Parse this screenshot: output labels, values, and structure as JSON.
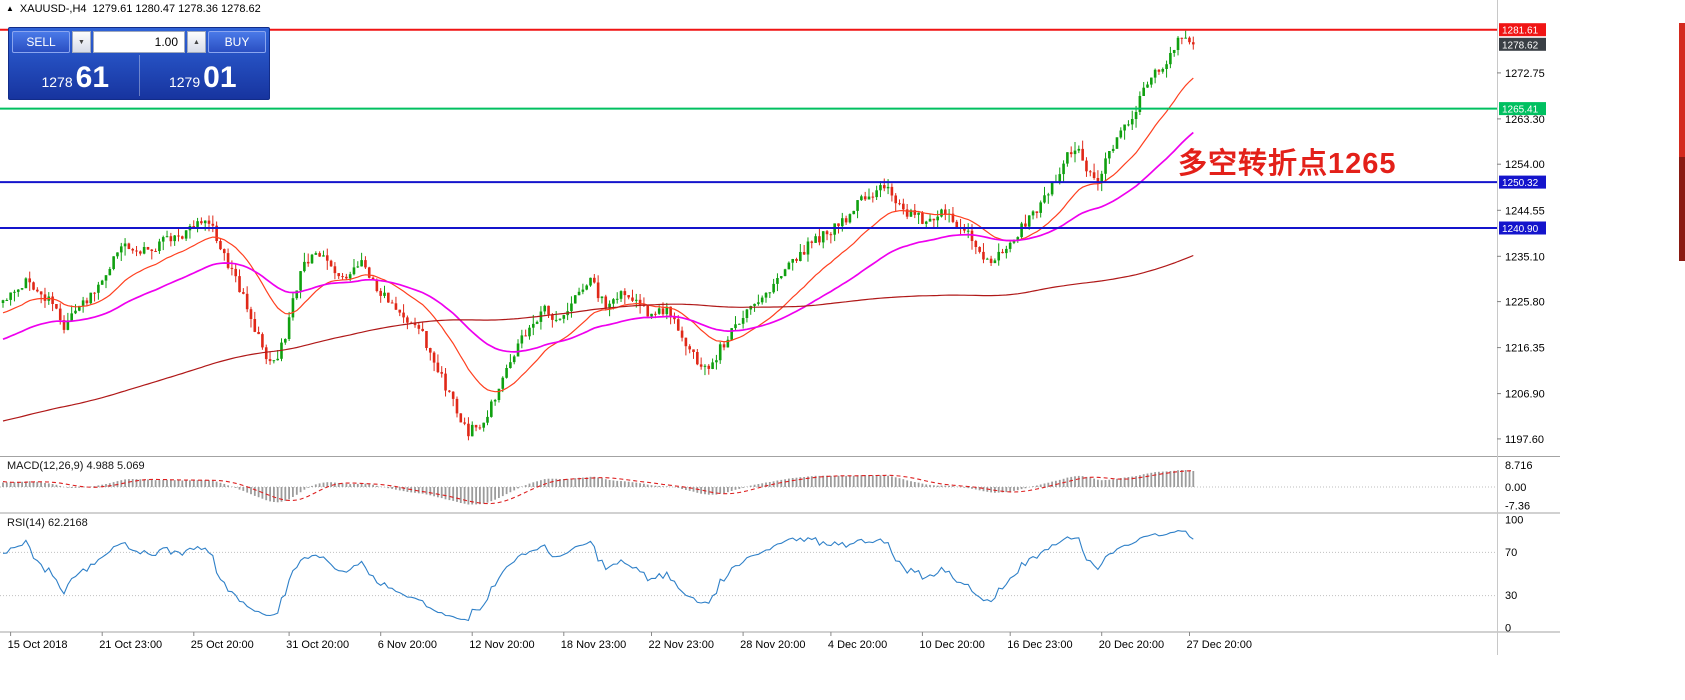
{
  "title_bar": {
    "symbol_icon": "▲",
    "symbol": "XAUUSD-,H4",
    "ohlc": "1279.61 1280.47 1278.36 1278.62"
  },
  "trade_panel": {
    "sell_label": "SELL",
    "buy_label": "BUY",
    "volume": "1.00",
    "volume_down_icon": "▼",
    "volume_up_icon": "▲",
    "sell_price_main": "1278",
    "sell_price_pips": "61",
    "buy_price_main": "1279",
    "buy_price_pips": "01"
  },
  "annotation": {
    "text": "多空转折点1265",
    "color": "#e32019"
  },
  "indicator_labels": {
    "macd": "MACD(12,26,9) 4.988 5.069",
    "rsi": "RSI(14) 62.2168"
  },
  "chart_data": {
    "type": "candlestick",
    "symbol": "XAUUSD-",
    "timeframe": "H4",
    "title_ohlc": {
      "open": "1279.61",
      "high": "1280.47",
      "low": "1278.36",
      "close": "1278.62"
    },
    "up_color": "#10a010",
    "down_color": "#e02818",
    "y_axis": {
      "min": 1194.3,
      "max": 1283.2,
      "ticks": [
        {
          "label": "1272.75",
          "price": 1272.75
        },
        {
          "label": "1263.30",
          "price": 1263.3
        },
        {
          "label": "1254.00",
          "price": 1254.0
        },
        {
          "label": "1244.55",
          "price": 1244.55
        },
        {
          "label": "1235.10",
          "price": 1235.1
        },
        {
          "label": "1225.80",
          "price": 1225.8
        },
        {
          "label": "1216.35",
          "price": 1216.35
        },
        {
          "label": "1206.90",
          "price": 1206.9
        },
        {
          "label": "1197.60",
          "price": 1197.6
        }
      ]
    },
    "current_price": {
      "label": "1278.62",
      "price": 1278.62,
      "box_color": "#3a3f45"
    },
    "hlines": [
      {
        "label": "1281.61",
        "price": 1281.61,
        "color": "#f01414"
      },
      {
        "label": "1265.41",
        "price": 1265.41,
        "color": "#00c060"
      },
      {
        "label": "1250.32",
        "price": 1250.32,
        "color": "#1414cc"
      },
      {
        "label": "1240.90",
        "price": 1240.9,
        "color": "#1414cc"
      }
    ],
    "time_axis": [
      {
        "label": "15 Oct 2018",
        "i": 2
      },
      {
        "label": "21 Oct 23:00",
        "i": 26
      },
      {
        "label": "25 Oct 20:00",
        "i": 50
      },
      {
        "label": "31 Oct 20:00",
        "i": 75
      },
      {
        "label": "6 Nov 20:00",
        "i": 99
      },
      {
        "label": "12 Nov 20:00",
        "i": 123
      },
      {
        "label": "18 Nov 23:00",
        "i": 147
      },
      {
        "label": "22 Nov 23:00",
        "i": 170
      },
      {
        "label": "28 Nov 20:00",
        "i": 194
      },
      {
        "label": "4 Dec 20:00",
        "i": 217
      },
      {
        "label": "10 Dec 20:00",
        "i": 241
      },
      {
        "label": "16 Dec 23:00",
        "i": 264
      },
      {
        "label": "20 Dec 20:00",
        "i": 288
      },
      {
        "label": "27 Dec 20:00",
        "i": 311
      }
    ],
    "candles_visible": 312,
    "warmup_path": [
      [
        -230,
        1196
      ],
      [
        -200,
        1191
      ],
      [
        -170,
        1188
      ],
      [
        -140,
        1193
      ],
      [
        -110,
        1197
      ],
      [
        -80,
        1201
      ],
      [
        -50,
        1206
      ],
      [
        -28,
        1218
      ],
      [
        -12,
        1226
      ],
      [
        -4,
        1223
      ]
    ],
    "price_path": [
      [
        0,
        1226
      ],
      [
        6,
        1230
      ],
      [
        12,
        1226
      ],
      [
        16,
        1221
      ],
      [
        20,
        1224
      ],
      [
        24,
        1228
      ],
      [
        28,
        1233
      ],
      [
        32,
        1238
      ],
      [
        36,
        1236
      ],
      [
        40,
        1237
      ],
      [
        44,
        1239
      ],
      [
        48,
        1240
      ],
      [
        53,
        1243
      ],
      [
        56,
        1239
      ],
      [
        60,
        1232
      ],
      [
        64,
        1225
      ],
      [
        68,
        1216
      ],
      [
        71,
        1213
      ],
      [
        74,
        1219
      ],
      [
        78,
        1232
      ],
      [
        82,
        1236
      ],
      [
        86,
        1233
      ],
      [
        90,
        1231
      ],
      [
        94,
        1234
      ],
      [
        98,
        1229
      ],
      [
        102,
        1225
      ],
      [
        106,
        1222
      ],
      [
        110,
        1219
      ],
      [
        114,
        1212
      ],
      [
        118,
        1205
      ],
      [
        122,
        1199
      ],
      [
        126,
        1201
      ],
      [
        130,
        1208
      ],
      [
        134,
        1215
      ],
      [
        138,
        1221
      ],
      [
        142,
        1224
      ],
      [
        146,
        1222
      ],
      [
        150,
        1227
      ],
      [
        154,
        1230
      ],
      [
        158,
        1225
      ],
      [
        162,
        1227
      ],
      [
        166,
        1226
      ],
      [
        170,
        1223
      ],
      [
        174,
        1224
      ],
      [
        178,
        1219
      ],
      [
        182,
        1213
      ],
      [
        185,
        1211
      ],
      [
        188,
        1216
      ],
      [
        192,
        1221
      ],
      [
        196,
        1224
      ],
      [
        200,
        1227
      ],
      [
        204,
        1231
      ],
      [
        208,
        1235
      ],
      [
        212,
        1238
      ],
      [
        216,
        1240
      ],
      [
        220,
        1242
      ],
      [
        224,
        1246
      ],
      [
        228,
        1248
      ],
      [
        231,
        1250
      ],
      [
        234,
        1247
      ],
      [
        237,
        1244
      ],
      [
        240,
        1243
      ],
      [
        243,
        1242
      ],
      [
        246,
        1245
      ],
      [
        249,
        1243
      ],
      [
        252,
        1240
      ],
      [
        255,
        1238
      ],
      [
        258,
        1234
      ],
      [
        261,
        1235
      ],
      [
        264,
        1238
      ],
      [
        267,
        1241
      ],
      [
        270,
        1244
      ],
      [
        273,
        1247
      ],
      [
        276,
        1251
      ],
      [
        279,
        1256
      ],
      [
        282,
        1257
      ],
      [
        284,
        1252
      ],
      [
        287,
        1251
      ],
      [
        290,
        1256
      ],
      [
        293,
        1260
      ],
      [
        296,
        1264
      ],
      [
        299,
        1269
      ],
      [
        302,
        1273
      ],
      [
        305,
        1275
      ],
      [
        308,
        1279
      ],
      [
        310,
        1280
      ],
      [
        312,
        1278.6
      ]
    ],
    "moving_averages": [
      {
        "name": "fast",
        "type": "ema",
        "period": 21,
        "color": "#ff4020"
      },
      {
        "name": "medium",
        "type": "ema",
        "period": 55,
        "color": "#ee00ee"
      },
      {
        "name": "slow",
        "type": "sma",
        "period": 200,
        "color": "#b01818"
      }
    ],
    "macd": {
      "fast": 12,
      "slow": 26,
      "signal": 9,
      "hist_color": "#9c9c9c",
      "signal_color": "#dd2020",
      "scale": [
        {
          "label": "8.716",
          "value": 8.716
        },
        {
          "label": "0.00",
          "value": 0
        },
        {
          "label": "-7.36",
          "value": -7.36
        }
      ]
    },
    "rsi": {
      "period": 14,
      "color": "#2f80c8",
      "levels": [
        {
          "label": "100",
          "value": 100
        },
        {
          "label": "70",
          "value": 70
        },
        {
          "label": "30",
          "value": 30
        },
        {
          "label": "0",
          "value": 0
        }
      ]
    }
  }
}
